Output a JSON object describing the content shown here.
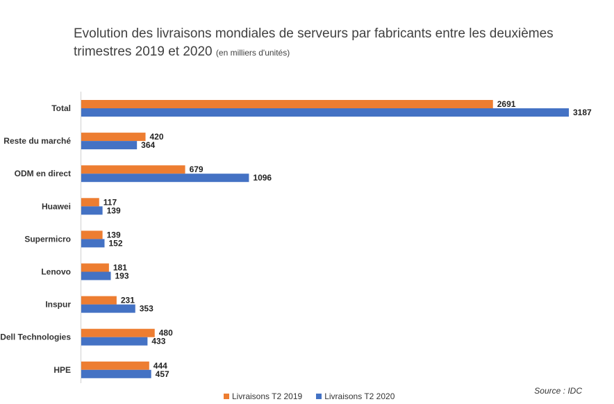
{
  "chart_data": {
    "type": "bar",
    "orientation": "horizontal",
    "title": "Evolution des livraisons mondiales de serveurs par fabricants entre les deuxièmes trimestres 2019 et 2020",
    "subtitle": "(en milliers d'unités)",
    "categories": [
      "Total",
      "Reste du marché",
      "ODM en direct",
      "Huawei",
      "Supermicro",
      "Lenovo",
      "Inspur",
      "Dell Technologies",
      "HPE"
    ],
    "series": [
      {
        "name": "Livraisons T2 2019",
        "color": "#ED7D31",
        "values": [
          2691,
          420,
          679,
          117,
          139,
          181,
          231,
          480,
          444
        ]
      },
      {
        "name": "Livraisons T2 2020",
        "color": "#4472C4",
        "values": [
          3187,
          364,
          1096,
          139,
          152,
          193,
          353,
          433,
          457
        ]
      }
    ],
    "xlim": [
      0,
      3187
    ],
    "grid": false,
    "legend_position": "bottom",
    "source": "Source : IDC"
  }
}
